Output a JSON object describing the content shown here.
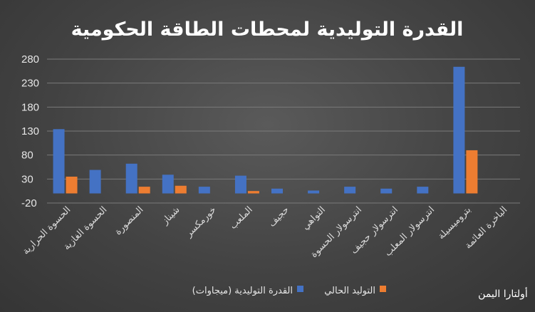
{
  "chart_data": {
    "type": "bar",
    "title": "القدرة التوليدية لمحطات الطاقة الحكومية",
    "xlabel": "",
    "ylabel": "",
    "ylim": [
      -20,
      280
    ],
    "yticks": [
      -20,
      30,
      80,
      130,
      180,
      230,
      280
    ],
    "categories": [
      "الحسوة الحرارية",
      "الحسوة الغازية",
      "المنصورة",
      "شيناز",
      "خورمكسر",
      "الملعب",
      "حجيف",
      "التواهي",
      "انترسولار الحسوة",
      "انترسولار حجيف",
      "انترسولار المعلب",
      "بتروميسيلة",
      "الباخرة العائمة"
    ],
    "series": [
      {
        "name": "القدرة التوليدية (ميجاوات)",
        "color": "#4472c4",
        "values": [
          134,
          49,
          62,
          39,
          14,
          37,
          10,
          6,
          14,
          10,
          14,
          264,
          null
        ]
      },
      {
        "name": "التوليد الحالي",
        "color": "#ed7d31",
        "values": [
          35,
          null,
          14,
          16,
          null,
          5,
          null,
          null,
          null,
          null,
          null,
          90,
          null
        ]
      }
    ],
    "grid": true,
    "legend_position": "bottom",
    "footnote": "أولتارا اليمن"
  }
}
